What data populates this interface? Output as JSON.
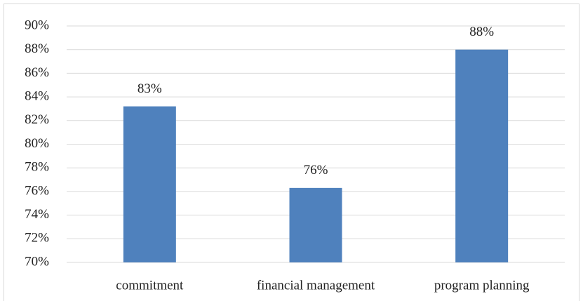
{
  "chart_data": {
    "type": "bar",
    "categories": [
      "commitment",
      "financial management",
      "program planning"
    ],
    "values": [
      83.2,
      76.3,
      88.0
    ],
    "value_labels": [
      "83%",
      "76%",
      "88%"
    ],
    "color": "#4f81bd",
    "ylim": [
      70,
      90
    ],
    "yticks": [
      {
        "value": 70,
        "label": "70%"
      },
      {
        "value": 72,
        "label": "72%"
      },
      {
        "value": 74,
        "label": "74%"
      },
      {
        "value": 76,
        "label": "76%"
      },
      {
        "value": 78,
        "label": "78%"
      },
      {
        "value": 80,
        "label": "80%"
      },
      {
        "value": 82,
        "label": "82%"
      },
      {
        "value": 84,
        "label": "84%"
      },
      {
        "value": 86,
        "label": "86%"
      },
      {
        "value": 88,
        "label": "88%"
      },
      {
        "value": 90,
        "label": "90%"
      }
    ],
    "grid": true
  }
}
